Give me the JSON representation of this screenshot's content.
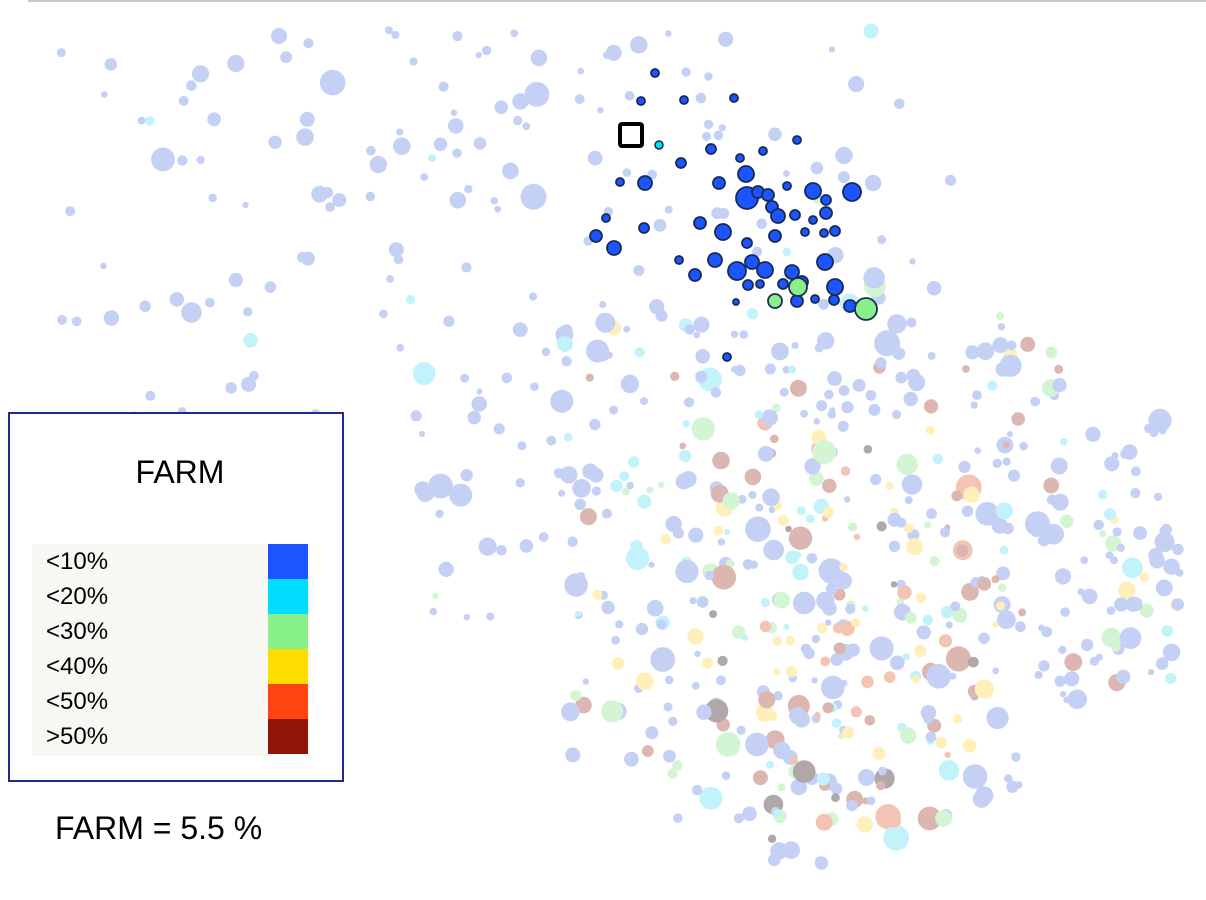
{
  "legend": {
    "title": "FARM",
    "bins": [
      {
        "label": "<10%",
        "color": "#1a55ff"
      },
      {
        "label": "<20%",
        "color": "#00ddff"
      },
      {
        "label": "<30%",
        "color": "#88f088"
      },
      {
        "label": "<40%",
        "color": "#ffdd00"
      },
      {
        "label": "<50%",
        "color": "#ff4411"
      },
      {
        "label": ">50%",
        "color": "#901408"
      }
    ]
  },
  "statistic": "FARM = 5.5 %",
  "colors": {
    "highlight_outline": "#1a2a55",
    "faded_blue": "#c5d0f5",
    "faded_cyan": "#c2f2fa",
    "faded_green": "#d4f5d4",
    "faded_yellow": "#fff0bb",
    "faded_red": "#f3c4b4",
    "faded_darkred": "#dcb6b0",
    "faded_gray": "#b0a8a8",
    "legend_border": "#1f2a8c",
    "selection_marker": "#000000"
  }
}
